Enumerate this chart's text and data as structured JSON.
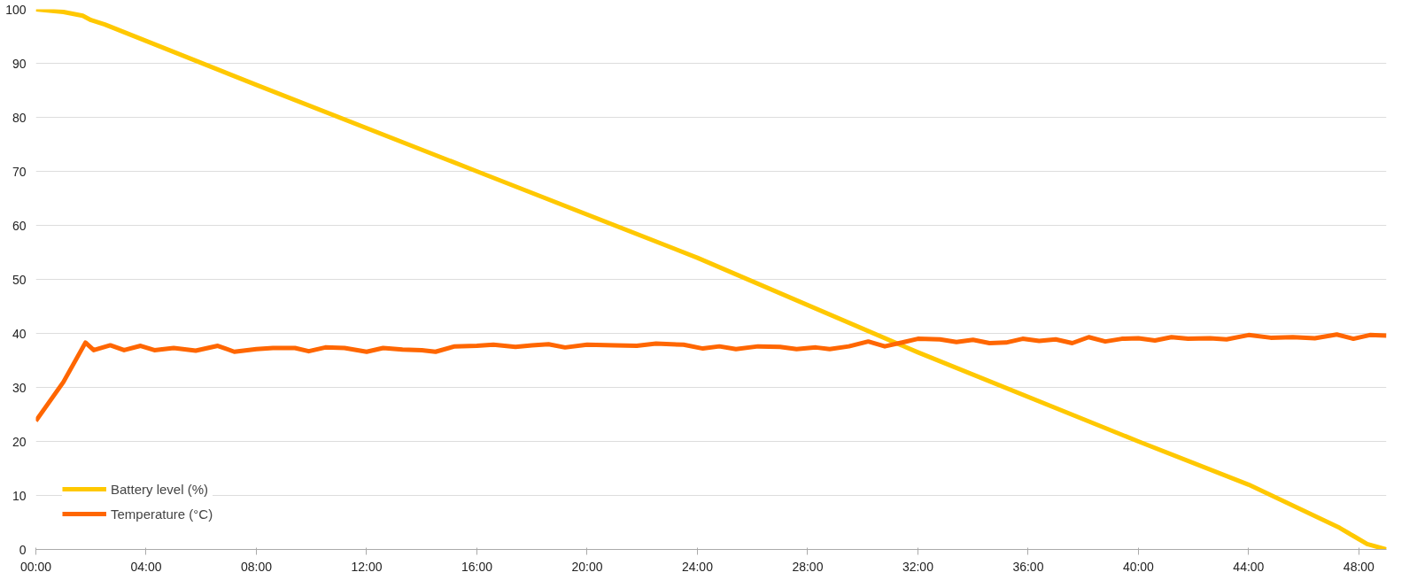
{
  "chart_data": {
    "type": "line",
    "xlim": [
      0,
      49
    ],
    "ylim": [
      0,
      100
    ],
    "xticks": [
      {
        "value": 0,
        "label": "00:00"
      },
      {
        "value": 4,
        "label": "04:00"
      },
      {
        "value": 8,
        "label": "08:00"
      },
      {
        "value": 12,
        "label": "12:00"
      },
      {
        "value": 16,
        "label": "16:00"
      },
      {
        "value": 20,
        "label": "20:00"
      },
      {
        "value": 24,
        "label": "24:00"
      },
      {
        "value": 28,
        "label": "28:00"
      },
      {
        "value": 32,
        "label": "32:00"
      },
      {
        "value": 36,
        "label": "36:00"
      },
      {
        "value": 40,
        "label": "40:00"
      },
      {
        "value": 44,
        "label": "44:00"
      },
      {
        "value": 48,
        "label": "48:00"
      }
    ],
    "yticks": [
      0,
      10,
      20,
      30,
      40,
      50,
      60,
      70,
      80,
      90,
      100
    ],
    "grid": "y",
    "legend": "bottom left",
    "line_style": "solid",
    "marker": "none",
    "series": [
      {
        "name": "Battery level (%)",
        "color": "#ffc800",
        "x": [
          0,
          1.0,
          1.7,
          2.0,
          2.5,
          8,
          16,
          24,
          32,
          40,
          44,
          47.3,
          47.8,
          48.3,
          49
        ],
        "values": [
          100,
          99.5,
          98.8,
          98,
          97.2,
          86,
          70,
          54,
          36.5,
          20,
          12,
          4,
          2.5,
          1,
          0
        ]
      },
      {
        "name": "Temperature (°C)",
        "color": "#ff6600",
        "x": [
          0,
          1.0,
          1.8,
          2.1,
          2.7,
          3.2,
          3.8,
          4.3,
          5.0,
          5.8,
          6.6,
          7.2,
          8.0,
          8.6,
          9.4,
          9.9,
          10.5,
          11.2,
          12.0,
          12.6,
          13.3,
          14.0,
          14.5,
          15.2,
          16.0,
          16.6,
          17.4,
          18.0,
          18.6,
          19.2,
          20.0,
          21.0,
          21.8,
          22.5,
          23.5,
          24.2,
          24.8,
          25.4,
          26.2,
          27.0,
          27.6,
          28.3,
          28.8,
          29.5,
          30.2,
          30.8,
          31.5,
          32.0,
          32.8,
          33.4,
          34.0,
          34.6,
          35.2,
          35.8,
          36.4,
          37.0,
          37.6,
          38.2,
          38.8,
          39.4,
          40.0,
          40.6,
          41.2,
          41.8,
          42.6,
          43.2,
          44.0,
          44.8,
          45.6,
          46.4,
          47.2,
          47.8,
          48.4,
          49.0
        ],
        "values": [
          23.8,
          31,
          38.3,
          36.9,
          37.8,
          36.9,
          37.7,
          36.9,
          37.3,
          36.8,
          37.7,
          36.6,
          37.1,
          37.3,
          37.3,
          36.7,
          37.4,
          37.3,
          36.6,
          37.3,
          37.0,
          36.9,
          36.6,
          37.6,
          37.7,
          37.9,
          37.5,
          37.8,
          38.0,
          37.4,
          37.9,
          37.8,
          37.7,
          38.1,
          37.9,
          37.2,
          37.6,
          37.1,
          37.6,
          37.5,
          37.1,
          37.4,
          37.1,
          37.6,
          38.5,
          37.6,
          38.4,
          39.0,
          38.9,
          38.4,
          38.8,
          38.2,
          38.3,
          39.0,
          38.6,
          38.9,
          38.2,
          39.3,
          38.5,
          39.0,
          39.1,
          38.7,
          39.3,
          39.0,
          39.1,
          38.9,
          39.7,
          39.2,
          39.3,
          39.1,
          39.8,
          39.0,
          39.7,
          39.6
        ]
      }
    ]
  }
}
